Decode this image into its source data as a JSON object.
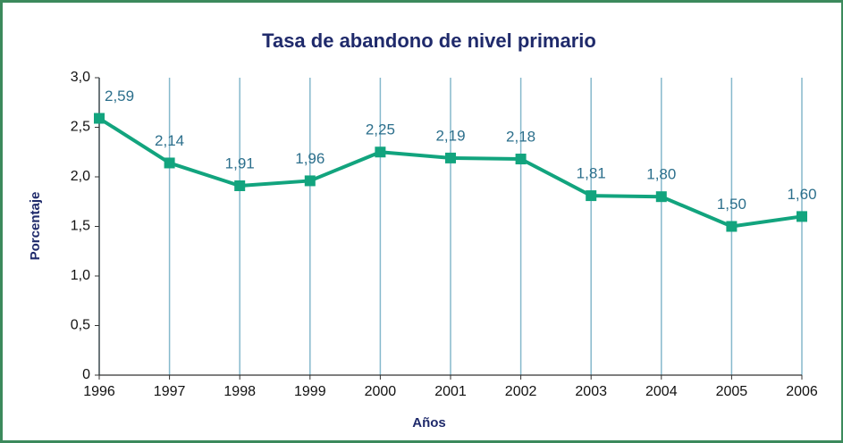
{
  "chart_data": {
    "type": "line",
    "title": "Tasa de abandono de nivel primario",
    "xlabel": "Años",
    "ylabel": "Porcentaje",
    "x": [
      1996,
      1997,
      1998,
      1999,
      2000,
      2001,
      2002,
      2003,
      2004,
      2005,
      2006
    ],
    "series": [
      {
        "name": "Tasa de abandono",
        "color": "#12a47e",
        "values": [
          2.59,
          2.14,
          1.91,
          1.96,
          2.25,
          2.19,
          2.18,
          1.81,
          1.8,
          1.5,
          1.6
        ],
        "value_labels": [
          "2,59",
          "2,14",
          "1,91",
          "1,96",
          "2,25",
          "2,19",
          "2,18",
          "1,81",
          "1,80",
          "1,50",
          "1,60"
        ]
      }
    ],
    "xlim": [
      1996,
      2006
    ],
    "xticks": [
      1996,
      1997,
      1998,
      1999,
      2000,
      2001,
      2002,
      2003,
      2004,
      2005,
      2006
    ],
    "ylim": [
      0,
      3
    ],
    "yticks": [
      0,
      {
        "value": 0.5,
        "label": "0,5"
      },
      {
        "value": 1,
        "label": "1,0"
      },
      {
        "value": 1.5,
        "label": "1,5"
      },
      {
        "value": 2,
        "label": "2,0"
      },
      {
        "value": 2.5,
        "label": "2,5"
      },
      {
        "value": 3,
        "label": "3,0"
      }
    ],
    "grid": true
  }
}
